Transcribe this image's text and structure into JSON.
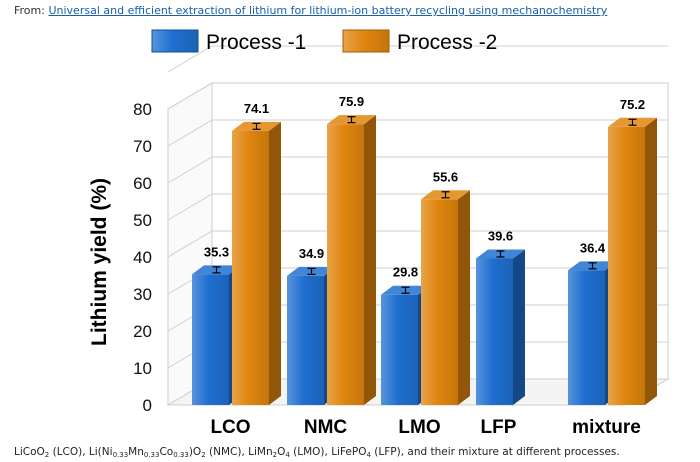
{
  "source": {
    "prefix": "From: ",
    "link_text": "Universal and efficient extraction of lithium for lithium-ion battery recycling using mechanochemistry"
  },
  "caption": {
    "parts": [
      {
        "t": "LiCoO"
      },
      {
        "s": "2"
      },
      {
        "t": " (LCO), Li(Ni"
      },
      {
        "s": "0.33"
      },
      {
        "t": "Mn"
      },
      {
        "s": "0.33"
      },
      {
        "t": "Co"
      },
      {
        "s": "0.33"
      },
      {
        "t": ")O"
      },
      {
        "s": "2"
      },
      {
        "t": " (NMC), LiMn"
      },
      {
        "s": "2"
      },
      {
        "t": "O"
      },
      {
        "s": "4"
      },
      {
        "t": " (LMO), LiFePO"
      },
      {
        "s": "4"
      },
      {
        "t": " (LFP), and their mixture at different processes."
      }
    ]
  },
  "colors": {
    "process1": "#1f6fd0",
    "process2": "#e0850e"
  },
  "chart_data": {
    "type": "bar",
    "categories": [
      "LCO",
      "NMC",
      "LMO",
      "LFP",
      "mixture"
    ],
    "series": [
      {
        "name": "Process -1",
        "values": [
          35.3,
          34.9,
          29.8,
          39.6,
          36.4
        ],
        "labels": [
          "35.3",
          "34.9",
          "29.8",
          "39.6",
          "36.4"
        ]
      },
      {
        "name": "Process -2",
        "values": [
          74.1,
          75.9,
          55.6,
          null,
          75.2
        ],
        "labels": [
          "74.1",
          "75.9",
          "55.6",
          "",
          "75.2"
        ]
      }
    ],
    "ylabel": "Lithium yield (%)",
    "ylim": [
      0,
      80
    ],
    "yticks": [
      0,
      10,
      20,
      30,
      40,
      50,
      60,
      70,
      80
    ],
    "grid": true,
    "legend_position": "top"
  }
}
